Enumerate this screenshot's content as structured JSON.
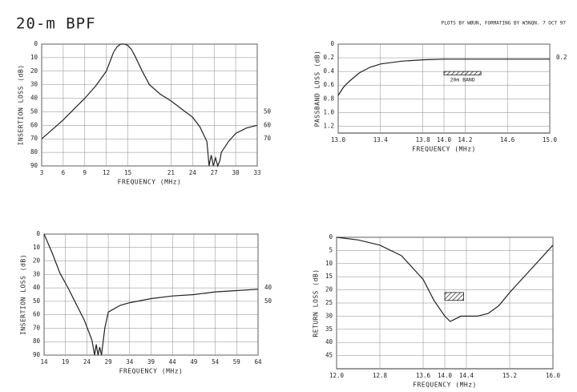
{
  "header": {
    "title": "20-m BPF",
    "credit": "PLOTS BY WØUN, FORMATING BY W3NQN.  7 OCT 97"
  },
  "chart_data": [
    {
      "type": "line",
      "xlabel": "FREQUENCY (MHz)",
      "ylabel": "INSERTION LOSS (dB)",
      "x": [
        3,
        4.5,
        6,
        7.5,
        9,
        10.5,
        12,
        12.5,
        13,
        13.5,
        14,
        14.5,
        15,
        15.5,
        16,
        17,
        18,
        19.5,
        21,
        22.5,
        24,
        25,
        26,
        26.3,
        26.6,
        26.9,
        27.2,
        27.5,
        27.8,
        28,
        29,
        30,
        31.5,
        33
      ],
      "series": [
        {
          "color": "#222222",
          "values": [
            70,
            63,
            56,
            48,
            40,
            31,
            20,
            13,
            6,
            2,
            0,
            0,
            1,
            4,
            9,
            20,
            30,
            37,
            42,
            48,
            54,
            61,
            72,
            90,
            82,
            90,
            84,
            90,
            86,
            80,
            72,
            66,
            62,
            60
          ]
        }
      ],
      "xlim": [
        3,
        33
      ],
      "ylim": [
        90,
        0
      ],
      "xticks": [
        3,
        6,
        9,
        12,
        15,
        21,
        24,
        27,
        30,
        33
      ],
      "yticks": [
        0,
        10,
        20,
        30,
        40,
        50,
        60,
        70,
        80,
        90
      ],
      "y2lim": [
        90,
        0
      ],
      "y2ticks": [
        50,
        60,
        70
      ],
      "grid": true
    },
    {
      "type": "line",
      "xlabel": "FREQUENCY (MHz)",
      "ylabel": "PASSBAND LOSS (dB)",
      "x": [
        13.0,
        13.05,
        13.1,
        13.2,
        13.3,
        13.4,
        13.6,
        13.8,
        14.0,
        14.5,
        15.0
      ],
      "series": [
        {
          "color": "#222222",
          "values": [
            0.75,
            0.63,
            0.55,
            0.42,
            0.34,
            0.29,
            0.25,
            0.23,
            0.22,
            0.22,
            0.22
          ]
        }
      ],
      "xlim": [
        13.0,
        15.0
      ],
      "ylim": [
        1.3,
        0
      ],
      "xticks": [
        {
          "value": 13.0,
          "label": "13.0"
        },
        13.4,
        13.8,
        {
          "value": 14.0,
          "label": "14.0"
        },
        14.2,
        14.6,
        {
          "value": 15.0,
          "label": "15.0"
        }
      ],
      "yticks": [
        0,
        0.2,
        0.4,
        0.6,
        0.8,
        {
          "value": 1.0,
          "label": "1.0"
        },
        1.2
      ],
      "y2lim": [
        1.3,
        0
      ],
      "y2ticks": [
        0.2
      ],
      "band": {
        "label": "20m BAND",
        "x": [
          14.0,
          14.35
        ],
        "y": [
          0.4,
          0.45
        ]
      },
      "grid": true
    },
    {
      "type": "line",
      "xlabel": "FREQUENCY (MHz)",
      "ylabel": "INSERTION LOSS (dB)",
      "x": [
        14,
        15.9,
        17.7,
        19.6,
        21.5,
        23.4,
        25.2,
        25.8,
        26.2,
        26.6,
        27,
        27.4,
        27.8,
        28.2,
        29,
        31.8,
        34,
        39,
        44,
        49,
        54,
        59,
        64
      ],
      "series": [
        {
          "color": "#222222",
          "values": [
            0,
            14,
            29,
            40,
            52,
            64,
            79,
            90,
            82,
            90,
            84,
            90,
            80,
            70,
            58,
            53,
            51,
            48,
            46,
            45,
            43,
            42,
            41
          ]
        }
      ],
      "xlim": [
        14,
        64
      ],
      "ylim": [
        90,
        0
      ],
      "xticks": [
        14,
        19,
        24,
        29,
        34,
        39,
        44,
        49,
        54,
        59,
        64
      ],
      "yticks": [
        0,
        10,
        20,
        30,
        40,
        50,
        60,
        70,
        80,
        90
      ],
      "y2lim": [
        90,
        0
      ],
      "y2ticks": [
        40,
        50
      ],
      "grid": true
    },
    {
      "type": "line",
      "xlabel": "FREQUENCY (MHz)",
      "ylabel": "RETURN LOSS (dB)",
      "x": [
        12.0,
        12.4,
        12.8,
        13.2,
        13.6,
        13.8,
        14.0,
        14.1,
        14.2,
        14.3,
        14.6,
        14.8,
        15.0,
        15.2,
        15.6,
        16.0
      ],
      "series": [
        {
          "color": "#222222",
          "values": [
            0,
            1,
            3,
            7,
            16,
            24,
            30,
            32,
            31,
            30,
            30,
            29,
            26,
            21,
            12,
            3
          ]
        }
      ],
      "xlim": [
        12.0,
        16.0
      ],
      "ylim": [
        50,
        0
      ],
      "xticks": [
        {
          "value": 12.0,
          "label": "12.0"
        },
        12.8,
        13.6,
        {
          "value": 14.0,
          "label": "14.0"
        },
        14.4,
        15.2,
        {
          "value": 16.0,
          "label": "16.0"
        }
      ],
      "yticks": [
        0,
        5,
        10,
        15,
        20,
        25,
        30,
        35,
        40,
        45
      ],
      "band": {
        "x": [
          14.0,
          14.35
        ],
        "y": [
          21,
          24
        ]
      },
      "grid": true
    }
  ]
}
